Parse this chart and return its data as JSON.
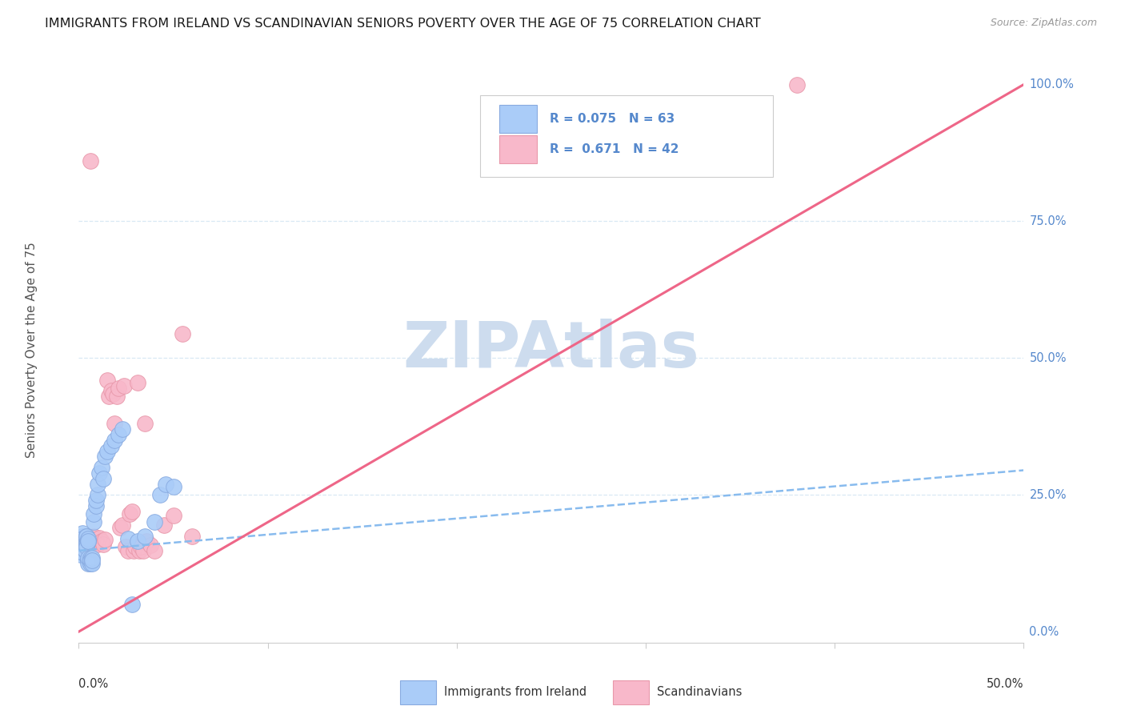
{
  "title": "IMMIGRANTS FROM IRELAND VS SCANDINAVIAN SENIORS POVERTY OVER THE AGE OF 75 CORRELATION CHART",
  "source": "Source: ZipAtlas.com",
  "ylabel": "Seniors Poverty Over the Age of 75",
  "xlim": [
    0.0,
    0.5
  ],
  "ylim": [
    -0.02,
    1.05
  ],
  "legend_ireland_r": "0.075",
  "legend_ireland_n": "63",
  "legend_scand_r": "0.671",
  "legend_scand_n": "42",
  "ireland_color": "#aaccf8",
  "ireland_edge": "#88aae0",
  "scand_color": "#f8b8ca",
  "scand_edge": "#e898aa",
  "trend_ireland_color": "#88bbee",
  "trend_scand_color": "#ee6688",
  "watermark_color": "#cddcee",
  "axis_color": "#5588cc",
  "grid_color": "#d8e8f4",
  "ireland_scatter_x": [
    0.001,
    0.001,
    0.001,
    0.001,
    0.001,
    0.002,
    0.002,
    0.002,
    0.002,
    0.002,
    0.002,
    0.002,
    0.002,
    0.002,
    0.003,
    0.003,
    0.003,
    0.003,
    0.003,
    0.003,
    0.003,
    0.004,
    0.004,
    0.004,
    0.004,
    0.004,
    0.004,
    0.005,
    0.005,
    0.005,
    0.005,
    0.005,
    0.005,
    0.006,
    0.006,
    0.006,
    0.006,
    0.007,
    0.007,
    0.007,
    0.008,
    0.008,
    0.009,
    0.009,
    0.01,
    0.01,
    0.011,
    0.012,
    0.013,
    0.014,
    0.015,
    0.017,
    0.019,
    0.021,
    0.023,
    0.026,
    0.028,
    0.031,
    0.035,
    0.04,
    0.043,
    0.046,
    0.05
  ],
  "ireland_scatter_y": [
    0.155,
    0.16,
    0.14,
    0.165,
    0.15,
    0.145,
    0.175,
    0.155,
    0.18,
    0.16,
    0.17,
    0.155,
    0.16,
    0.145,
    0.15,
    0.165,
    0.155,
    0.165,
    0.15,
    0.16,
    0.16,
    0.175,
    0.165,
    0.16,
    0.16,
    0.155,
    0.175,
    0.165,
    0.17,
    0.165,
    0.13,
    0.125,
    0.135,
    0.13,
    0.125,
    0.135,
    0.13,
    0.125,
    0.135,
    0.13,
    0.2,
    0.215,
    0.23,
    0.24,
    0.25,
    0.27,
    0.29,
    0.3,
    0.28,
    0.32,
    0.33,
    0.34,
    0.35,
    0.36,
    0.37,
    0.17,
    0.05,
    0.165,
    0.175,
    0.2,
    0.25,
    0.27,
    0.265
  ],
  "scand_scatter_x": [
    0.003,
    0.004,
    0.005,
    0.006,
    0.007,
    0.008,
    0.009,
    0.01,
    0.011,
    0.012,
    0.013,
    0.014,
    0.015,
    0.016,
    0.017,
    0.018,
    0.019,
    0.02,
    0.021,
    0.022,
    0.023,
    0.024,
    0.025,
    0.026,
    0.027,
    0.028,
    0.029,
    0.03,
    0.031,
    0.032,
    0.033,
    0.034,
    0.035,
    0.036,
    0.038,
    0.04,
    0.045,
    0.05,
    0.055,
    0.06,
    0.38,
    0.006
  ],
  "scand_scatter_y": [
    0.165,
    0.155,
    0.17,
    0.158,
    0.165,
    0.175,
    0.168,
    0.16,
    0.172,
    0.165,
    0.16,
    0.168,
    0.46,
    0.43,
    0.44,
    0.435,
    0.38,
    0.43,
    0.445,
    0.19,
    0.195,
    0.45,
    0.155,
    0.148,
    0.215,
    0.22,
    0.148,
    0.155,
    0.455,
    0.148,
    0.155,
    0.148,
    0.38,
    0.165,
    0.158,
    0.148,
    0.195,
    0.212,
    0.545,
    0.175,
    1.0,
    0.86
  ],
  "ireland_trend_x": [
    0.0,
    0.5
  ],
  "ireland_trend_y": [
    0.148,
    0.295
  ],
  "scand_trend_x": [
    0.0,
    0.5
  ],
  "scand_trend_y": [
    0.0,
    1.0
  ],
  "ytick_positions": [
    0.0,
    0.25,
    0.5,
    0.75,
    1.0
  ],
  "ytick_labels": [
    "0.0%",
    "25.0%",
    "50.0%",
    "75.0%",
    "100.0%"
  ]
}
